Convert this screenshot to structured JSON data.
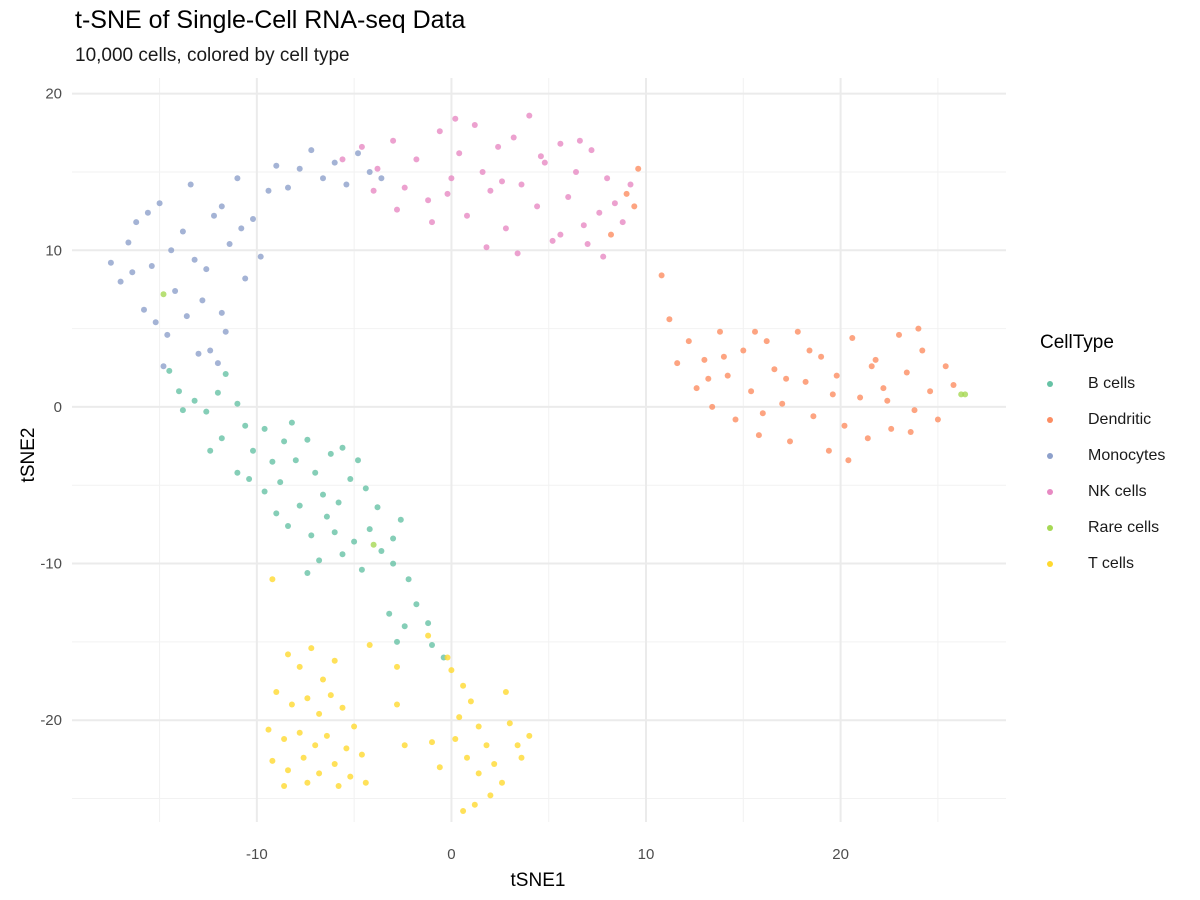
{
  "title": "t-SNE of Single-Cell RNA-seq Data",
  "subtitle": "10,000 cells, colored by cell type",
  "chart_data": {
    "type": "scatter",
    "xlabel": "tSNE1",
    "ylabel": "tSNE2",
    "xlim": [
      -19.5,
      28.5
    ],
    "ylim": [
      -26.5,
      21
    ],
    "x_ticks": [
      -10,
      0,
      10,
      20
    ],
    "y_ticks": [
      20,
      10,
      0,
      -10,
      -20
    ],
    "grid": true,
    "legend_position": "right",
    "legend_title": "CellType",
    "series": [
      {
        "name": "B cells",
        "color": "#66C2A5",
        "points": [
          [
            -14.5,
            2.3
          ],
          [
            -14.0,
            1.0
          ],
          [
            -13.2,
            0.4
          ],
          [
            -12.6,
            -0.3
          ],
          [
            -12.0,
            0.9
          ],
          [
            -11.6,
            2.1
          ],
          [
            -11.0,
            0.2
          ],
          [
            -10.6,
            -1.2
          ],
          [
            -11.8,
            -2.0
          ],
          [
            -10.2,
            -2.8
          ],
          [
            -9.6,
            -1.4
          ],
          [
            -9.2,
            -3.5
          ],
          [
            -8.6,
            -2.2
          ],
          [
            -10.4,
            -4.6
          ],
          [
            -9.6,
            -5.4
          ],
          [
            -8.8,
            -4.8
          ],
          [
            -8.0,
            -3.4
          ],
          [
            -7.4,
            -2.1
          ],
          [
            -7.0,
            -4.2
          ],
          [
            -6.6,
            -5.6
          ],
          [
            -7.8,
            -6.3
          ],
          [
            -9.0,
            -6.8
          ],
          [
            -8.4,
            -7.6
          ],
          [
            -7.2,
            -8.2
          ],
          [
            -6.4,
            -7.0
          ],
          [
            -5.8,
            -6.1
          ],
          [
            -5.2,
            -4.6
          ],
          [
            -4.8,
            -3.4
          ],
          [
            -5.6,
            -2.6
          ],
          [
            -6.2,
            -3.0
          ],
          [
            -4.4,
            -5.2
          ],
          [
            -3.8,
            -6.4
          ],
          [
            -4.2,
            -7.8
          ],
          [
            -5.0,
            -8.6
          ],
          [
            -5.6,
            -9.4
          ],
          [
            -6.8,
            -9.8
          ],
          [
            -7.4,
            -10.6
          ],
          [
            -4.6,
            -10.4
          ],
          [
            -3.6,
            -9.2
          ],
          [
            -3.0,
            -8.4
          ],
          [
            -2.6,
            -7.2
          ],
          [
            -2.2,
            -11.0
          ],
          [
            -1.8,
            -12.6
          ],
          [
            -1.2,
            -13.8
          ],
          [
            -2.4,
            -14.0
          ],
          [
            -3.2,
            -13.2
          ],
          [
            -1.0,
            -15.2
          ],
          [
            -0.4,
            -16.0
          ],
          [
            -2.8,
            -15.0
          ],
          [
            -12.4,
            -2.8
          ],
          [
            -13.8,
            -0.2
          ],
          [
            -11.0,
            -4.2
          ],
          [
            -8.2,
            -1.0
          ],
          [
            -6.0,
            -8.0
          ],
          [
            -3.0,
            -10.0
          ]
        ]
      },
      {
        "name": "Dendritic",
        "color": "#FC8D62",
        "points": [
          [
            11.2,
            5.6
          ],
          [
            11.6,
            2.8
          ],
          [
            12.2,
            4.2
          ],
          [
            12.6,
            1.2
          ],
          [
            13.0,
            3.0
          ],
          [
            13.4,
            0.0
          ],
          [
            13.8,
            4.8
          ],
          [
            14.2,
            2.0
          ],
          [
            14.6,
            -0.8
          ],
          [
            15.0,
            3.6
          ],
          [
            15.4,
            1.0
          ],
          [
            15.8,
            -1.8
          ],
          [
            16.2,
            4.2
          ],
          [
            16.6,
            2.4
          ],
          [
            17.0,
            0.2
          ],
          [
            17.4,
            -2.2
          ],
          [
            17.8,
            4.8
          ],
          [
            18.2,
            1.6
          ],
          [
            18.6,
            -0.6
          ],
          [
            19.0,
            3.2
          ],
          [
            19.4,
            -2.8
          ],
          [
            19.8,
            2.0
          ],
          [
            20.2,
            -1.2
          ],
          [
            20.6,
            4.4
          ],
          [
            21.0,
            0.6
          ],
          [
            21.4,
            -2.0
          ],
          [
            21.8,
            3.0
          ],
          [
            22.2,
            1.2
          ],
          [
            22.6,
            -1.4
          ],
          [
            23.0,
            4.6
          ],
          [
            23.4,
            2.2
          ],
          [
            23.8,
            -0.2
          ],
          [
            24.2,
            3.6
          ],
          [
            24.6,
            1.0
          ],
          [
            25.0,
            -0.8
          ],
          [
            25.4,
            2.6
          ],
          [
            25.8,
            1.4
          ],
          [
            14.0,
            3.2
          ],
          [
            16.0,
            -0.4
          ],
          [
            18.4,
            3.6
          ],
          [
            20.4,
            -3.4
          ],
          [
            22.4,
            0.4
          ],
          [
            24.0,
            5.0
          ],
          [
            17.2,
            1.8
          ],
          [
            19.6,
            0.8
          ],
          [
            21.6,
            2.6
          ],
          [
            15.6,
            4.8
          ],
          [
            23.6,
            -1.6
          ],
          [
            13.2,
            1.8
          ],
          [
            10.8,
            8.4
          ],
          [
            9.6,
            15.2
          ],
          [
            9.4,
            12.8
          ],
          [
            8.2,
            11.0
          ],
          [
            9.0,
            13.6
          ]
        ]
      },
      {
        "name": "Monocytes",
        "color": "#8DA0CB",
        "points": [
          [
            -17.5,
            9.2
          ],
          [
            -17.0,
            8.0
          ],
          [
            -16.6,
            10.5
          ],
          [
            -16.2,
            11.8
          ],
          [
            -15.8,
            6.2
          ],
          [
            -15.4,
            9.0
          ],
          [
            -15.0,
            13.0
          ],
          [
            -14.6,
            4.6
          ],
          [
            -14.2,
            7.4
          ],
          [
            -13.8,
            11.2
          ],
          [
            -13.4,
            14.2
          ],
          [
            -13.0,
            3.4
          ],
          [
            -12.6,
            8.8
          ],
          [
            -12.2,
            12.2
          ],
          [
            -11.8,
            6.0
          ],
          [
            -11.4,
            10.4
          ],
          [
            -11.0,
            14.6
          ],
          [
            -10.6,
            8.2
          ],
          [
            -10.2,
            12.0
          ],
          [
            -9.8,
            9.6
          ],
          [
            -9.4,
            13.8
          ],
          [
            -9.0,
            15.4
          ],
          [
            -8.4,
            14.0
          ],
          [
            -7.8,
            15.2
          ],
          [
            -7.2,
            16.4
          ],
          [
            -6.6,
            14.6
          ],
          [
            -6.0,
            15.6
          ],
          [
            -5.4,
            14.2
          ],
          [
            -4.8,
            16.2
          ],
          [
            -4.2,
            15.0
          ],
          [
            -3.6,
            14.6
          ],
          [
            -14.8,
            2.6
          ],
          [
            -13.6,
            5.8
          ],
          [
            -12.8,
            6.8
          ],
          [
            -15.6,
            12.4
          ],
          [
            -11.6,
            4.8
          ],
          [
            -10.8,
            11.4
          ],
          [
            -12.4,
            3.6
          ],
          [
            -16.4,
            8.6
          ],
          [
            -14.4,
            10.0
          ],
          [
            -13.2,
            9.4
          ],
          [
            -11.8,
            12.8
          ],
          [
            -15.2,
            5.4
          ],
          [
            -12.0,
            2.8
          ]
        ]
      },
      {
        "name": "NK cells",
        "color": "#E78AC3",
        "points": [
          [
            -5.6,
            15.8
          ],
          [
            -4.6,
            16.6
          ],
          [
            -3.8,
            15.2
          ],
          [
            -3.0,
            17.0
          ],
          [
            -2.4,
            14.0
          ],
          [
            -1.8,
            15.8
          ],
          [
            -1.2,
            13.2
          ],
          [
            -0.6,
            17.6
          ],
          [
            0.0,
            14.6
          ],
          [
            0.4,
            16.2
          ],
          [
            0.8,
            12.2
          ],
          [
            1.2,
            18.0
          ],
          [
            1.6,
            15.0
          ],
          [
            2.0,
            13.8
          ],
          [
            2.4,
            16.6
          ],
          [
            2.8,
            11.4
          ],
          [
            3.2,
            17.2
          ],
          [
            3.6,
            14.2
          ],
          [
            4.0,
            18.6
          ],
          [
            4.4,
            12.8
          ],
          [
            4.8,
            15.6
          ],
          [
            5.2,
            10.6
          ],
          [
            5.6,
            16.8
          ],
          [
            6.0,
            13.4
          ],
          [
            6.4,
            15.0
          ],
          [
            6.8,
            11.6
          ],
          [
            7.2,
            16.4
          ],
          [
            7.6,
            12.4
          ],
          [
            8.0,
            14.6
          ],
          [
            8.4,
            13.0
          ],
          [
            8.8,
            11.8
          ],
          [
            9.2,
            14.2
          ],
          [
            -2.8,
            12.6
          ],
          [
            -1.0,
            11.8
          ],
          [
            1.8,
            10.2
          ],
          [
            3.4,
            9.8
          ],
          [
            5.6,
            11.0
          ],
          [
            7.0,
            10.4
          ],
          [
            -0.2,
            13.6
          ],
          [
            2.6,
            14.4
          ],
          [
            4.6,
            16.0
          ],
          [
            6.6,
            17.0
          ],
          [
            0.2,
            18.4
          ],
          [
            -4.0,
            13.8
          ],
          [
            7.8,
            9.6
          ]
        ]
      },
      {
        "name": "Rare cells",
        "color": "#A6D854",
        "points": [
          [
            26.2,
            0.8
          ],
          [
            26.4,
            0.8
          ],
          [
            -14.8,
            7.2
          ],
          [
            -4.0,
            -8.8
          ]
        ]
      },
      {
        "name": "T cells",
        "color": "#FFD92F",
        "points": [
          [
            -9.2,
            -11.0
          ],
          [
            -8.4,
            -15.8
          ],
          [
            -7.8,
            -16.6
          ],
          [
            -7.2,
            -15.4
          ],
          [
            -6.6,
            -17.4
          ],
          [
            -6.0,
            -16.2
          ],
          [
            -9.0,
            -18.2
          ],
          [
            -8.2,
            -19.0
          ],
          [
            -7.4,
            -18.6
          ],
          [
            -6.8,
            -19.6
          ],
          [
            -6.2,
            -18.4
          ],
          [
            -5.6,
            -19.2
          ],
          [
            -5.0,
            -20.4
          ],
          [
            -9.4,
            -20.6
          ],
          [
            -8.6,
            -21.2
          ],
          [
            -7.8,
            -20.8
          ],
          [
            -7.0,
            -21.6
          ],
          [
            -6.4,
            -21.0
          ],
          [
            -5.4,
            -21.8
          ],
          [
            -4.6,
            -22.2
          ],
          [
            -9.2,
            -22.6
          ],
          [
            -8.4,
            -23.2
          ],
          [
            -7.6,
            -22.4
          ],
          [
            -6.8,
            -23.4
          ],
          [
            -6.0,
            -22.8
          ],
          [
            -5.2,
            -23.6
          ],
          [
            -8.6,
            -24.2
          ],
          [
            -7.4,
            -24.0
          ],
          [
            -5.8,
            -24.2
          ],
          [
            -4.4,
            -24.0
          ],
          [
            -4.2,
            -15.2
          ],
          [
            -2.8,
            -16.6
          ],
          [
            -2.8,
            -19.0
          ],
          [
            -2.4,
            -21.6
          ],
          [
            -1.0,
            -21.4
          ],
          [
            0.0,
            -16.8
          ],
          [
            0.6,
            -17.8
          ],
          [
            1.0,
            -18.8
          ],
          [
            0.4,
            -19.8
          ],
          [
            1.4,
            -20.4
          ],
          [
            0.2,
            -21.2
          ],
          [
            1.8,
            -21.6
          ],
          [
            0.8,
            -22.4
          ],
          [
            2.2,
            -22.8
          ],
          [
            1.4,
            -23.4
          ],
          [
            2.6,
            -24.0
          ],
          [
            3.0,
            -20.2
          ],
          [
            3.4,
            -21.6
          ],
          [
            3.6,
            -22.4
          ],
          [
            2.0,
            -24.8
          ],
          [
            1.2,
            -25.4
          ],
          [
            0.6,
            -25.8
          ],
          [
            4.0,
            -21.0
          ],
          [
            -0.6,
            -23.0
          ],
          [
            2.8,
            -18.2
          ],
          [
            -0.2,
            -16.0
          ],
          [
            -1.2,
            -14.6
          ]
        ]
      }
    ]
  }
}
